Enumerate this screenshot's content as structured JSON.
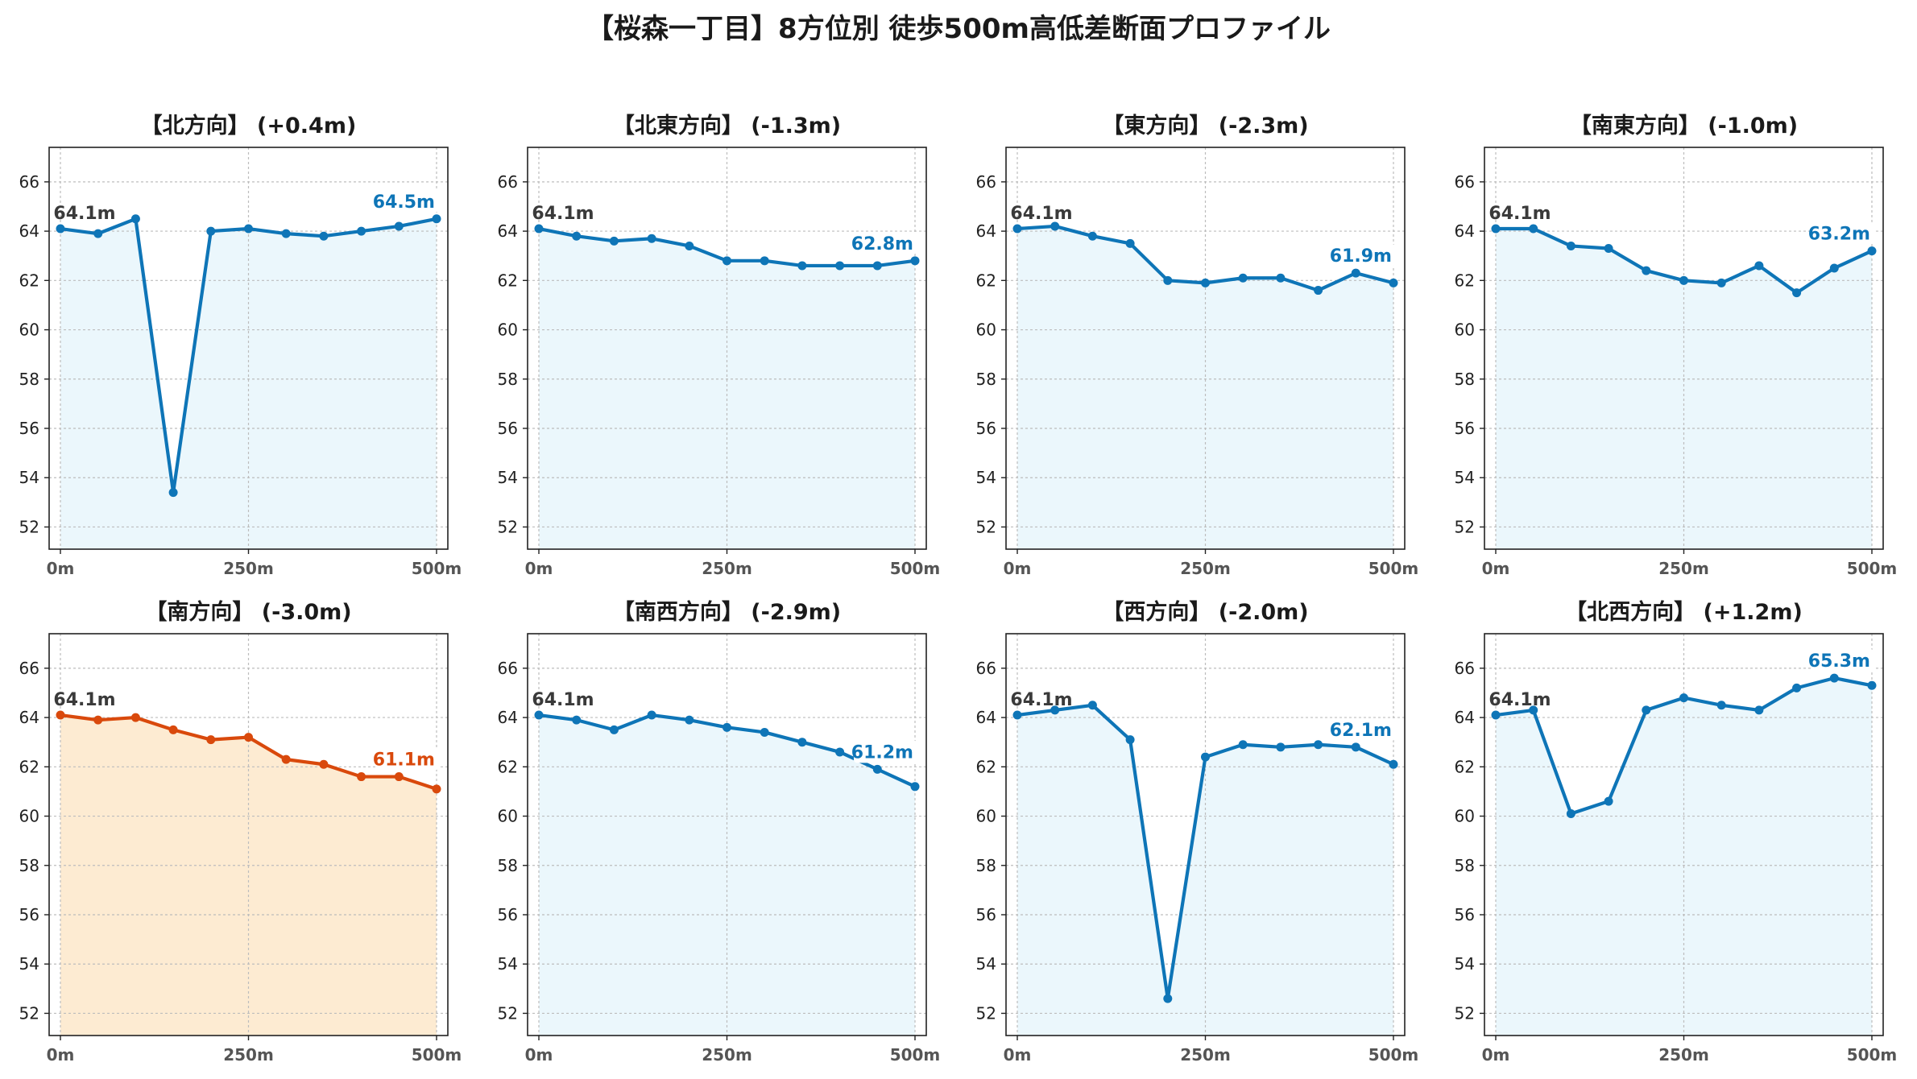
{
  "page": {
    "title": "【桜森一丁目】8方位別 徒歩500m高低差断面プロファイル"
  },
  "colors": {
    "normal_line": "#0e75b7",
    "normal_fill": "#ebf7fc",
    "highlight_line": "#d9490c",
    "highlight_fill": "#fdebd2",
    "start_label": "#3a3a3a",
    "grid": "#bdbdbd",
    "tick_text": "#555555"
  },
  "chart_data": [
    {
      "type": "line",
      "title": "【北方向】 (+0.4m)",
      "highlight": false,
      "start_label": "64.1m",
      "end_label": "64.5m",
      "x": [
        0,
        50,
        100,
        150,
        200,
        250,
        300,
        350,
        400,
        450,
        500
      ],
      "values": [
        64.1,
        63.9,
        64.5,
        53.4,
        64.0,
        64.1,
        63.9,
        63.8,
        64.0,
        64.2,
        64.5
      ],
      "xticks": [
        0,
        250,
        500
      ],
      "xtick_labels": [
        "0m",
        "250m",
        "500m"
      ],
      "yticks": [
        52,
        54,
        56,
        58,
        60,
        62,
        64,
        66
      ],
      "xlim": [
        -15,
        515
      ],
      "ylim": [
        51.1,
        67.4
      ],
      "grid": true
    },
    {
      "type": "line",
      "title": "【北東方向】 (-1.3m)",
      "highlight": false,
      "start_label": "64.1m",
      "end_label": "62.8m",
      "x": [
        0,
        50,
        100,
        150,
        200,
        250,
        300,
        350,
        400,
        450,
        500
      ],
      "values": [
        64.1,
        63.8,
        63.6,
        63.7,
        63.4,
        62.8,
        62.8,
        62.6,
        62.6,
        62.6,
        62.8
      ],
      "xticks": [
        0,
        250,
        500
      ],
      "xtick_labels": [
        "0m",
        "250m",
        "500m"
      ],
      "yticks": [
        52,
        54,
        56,
        58,
        60,
        62,
        64,
        66
      ],
      "xlim": [
        -15,
        515
      ],
      "ylim": [
        51.1,
        67.4
      ],
      "grid": true
    },
    {
      "type": "line",
      "title": "【東方向】 (-2.3m)",
      "highlight": false,
      "start_label": "64.1m",
      "end_label": "61.9m",
      "x": [
        0,
        50,
        100,
        150,
        200,
        250,
        300,
        350,
        400,
        450,
        500
      ],
      "values": [
        64.1,
        64.2,
        63.8,
        63.5,
        62.0,
        61.9,
        62.1,
        62.1,
        61.6,
        62.3,
        61.9
      ],
      "xticks": [
        0,
        250,
        500
      ],
      "xtick_labels": [
        "0m",
        "250m",
        "500m"
      ],
      "yticks": [
        52,
        54,
        56,
        58,
        60,
        62,
        64,
        66
      ],
      "xlim": [
        -15,
        515
      ],
      "ylim": [
        51.1,
        67.4
      ],
      "grid": true
    },
    {
      "type": "line",
      "title": "【南東方向】 (-1.0m)",
      "highlight": false,
      "start_label": "64.1m",
      "end_label": "63.2m",
      "x": [
        0,
        50,
        100,
        150,
        200,
        250,
        300,
        350,
        400,
        450,
        500
      ],
      "values": [
        64.1,
        64.1,
        63.4,
        63.3,
        62.4,
        62.0,
        61.9,
        62.6,
        61.5,
        62.5,
        63.2
      ],
      "xticks": [
        0,
        250,
        500
      ],
      "xtick_labels": [
        "0m",
        "250m",
        "500m"
      ],
      "yticks": [
        52,
        54,
        56,
        58,
        60,
        62,
        64,
        66
      ],
      "xlim": [
        -15,
        515
      ],
      "ylim": [
        51.1,
        67.4
      ],
      "grid": true
    },
    {
      "type": "line",
      "title": "【南方向】 (-3.0m)",
      "highlight": true,
      "start_label": "64.1m",
      "end_label": "61.1m",
      "x": [
        0,
        50,
        100,
        150,
        200,
        250,
        300,
        350,
        400,
        450,
        500
      ],
      "values": [
        64.1,
        63.9,
        64.0,
        63.5,
        63.1,
        63.2,
        62.3,
        62.1,
        61.6,
        61.6,
        61.1
      ],
      "xticks": [
        0,
        250,
        500
      ],
      "xtick_labels": [
        "0m",
        "250m",
        "500m"
      ],
      "yticks": [
        52,
        54,
        56,
        58,
        60,
        62,
        64,
        66
      ],
      "xlim": [
        -15,
        515
      ],
      "ylim": [
        51.1,
        67.4
      ],
      "grid": true
    },
    {
      "type": "line",
      "title": "【南西方向】 (-2.9m)",
      "highlight": false,
      "start_label": "64.1m",
      "end_label": "61.2m",
      "x": [
        0,
        50,
        100,
        150,
        200,
        250,
        300,
        350,
        400,
        450,
        500
      ],
      "values": [
        64.1,
        63.9,
        63.5,
        64.1,
        63.9,
        63.6,
        63.4,
        63.0,
        62.6,
        61.9,
        61.2
      ],
      "xticks": [
        0,
        250,
        500
      ],
      "xtick_labels": [
        "0m",
        "250m",
        "500m"
      ],
      "yticks": [
        52,
        54,
        56,
        58,
        60,
        62,
        64,
        66
      ],
      "xlim": [
        -15,
        515
      ],
      "ylim": [
        51.1,
        67.4
      ],
      "grid": true
    },
    {
      "type": "line",
      "title": "【西方向】 (-2.0m)",
      "highlight": false,
      "start_label": "64.1m",
      "end_label": "62.1m",
      "x": [
        0,
        50,
        100,
        150,
        200,
        250,
        300,
        350,
        400,
        450,
        500
      ],
      "values": [
        64.1,
        64.3,
        64.5,
        63.1,
        52.6,
        62.4,
        62.9,
        62.8,
        62.9,
        62.8,
        62.1
      ],
      "xticks": [
        0,
        250,
        500
      ],
      "xtick_labels": [
        "0m",
        "250m",
        "500m"
      ],
      "yticks": [
        52,
        54,
        56,
        58,
        60,
        62,
        64,
        66
      ],
      "xlim": [
        -15,
        515
      ],
      "ylim": [
        51.1,
        67.4
      ],
      "grid": true
    },
    {
      "type": "line",
      "title": "【北西方向】 (+1.2m)",
      "highlight": false,
      "start_label": "64.1m",
      "end_label": "65.3m",
      "x": [
        0,
        50,
        100,
        150,
        200,
        250,
        300,
        350,
        400,
        450,
        500
      ],
      "values": [
        64.1,
        64.3,
        60.1,
        60.6,
        64.3,
        64.8,
        64.5,
        64.3,
        65.2,
        65.6,
        65.3
      ],
      "xticks": [
        0,
        250,
        500
      ],
      "xtick_labels": [
        "0m",
        "250m",
        "500m"
      ],
      "yticks": [
        52,
        54,
        56,
        58,
        60,
        62,
        64,
        66
      ],
      "xlim": [
        -15,
        515
      ],
      "ylim": [
        51.1,
        67.4
      ],
      "grid": true
    }
  ]
}
